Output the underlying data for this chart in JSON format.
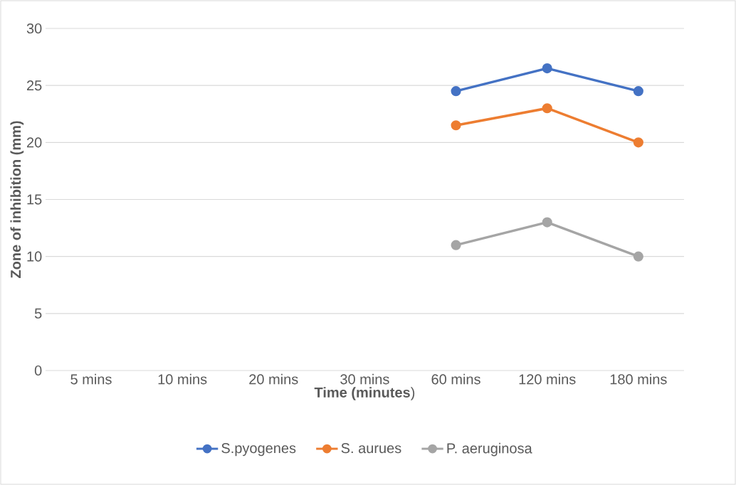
{
  "chart_data": {
    "type": "line",
    "xlabel": "**Time (minutes**)",
    "ylabel": "Zone of inhibition (mm)",
    "categories": [
      "5 mins",
      "10 mins",
      "20 mins",
      "30 mins",
      "60 mins",
      "120 mins",
      "180 mins"
    ],
    "series": [
      {
        "name": "S.pyogenes",
        "color": "#4472c4",
        "values": [
          null,
          null,
          null,
          null,
          24.5,
          26.5,
          24.5
        ]
      },
      {
        "name": "S. aurues",
        "color": "#ed7d31",
        "values": [
          null,
          null,
          null,
          null,
          21.5,
          23,
          20
        ]
      },
      {
        "name": "P. aeruginosa",
        "color": "#a5a5a5",
        "values": [
          null,
          null,
          null,
          null,
          11,
          13,
          10
        ]
      }
    ],
    "ylim": [
      0,
      30
    ],
    "yticks": [
      0,
      5,
      10,
      15,
      20,
      25,
      30
    ],
    "grid": "y",
    "legend": "bottom",
    "marker": "circle",
    "line_style": "solid"
  }
}
